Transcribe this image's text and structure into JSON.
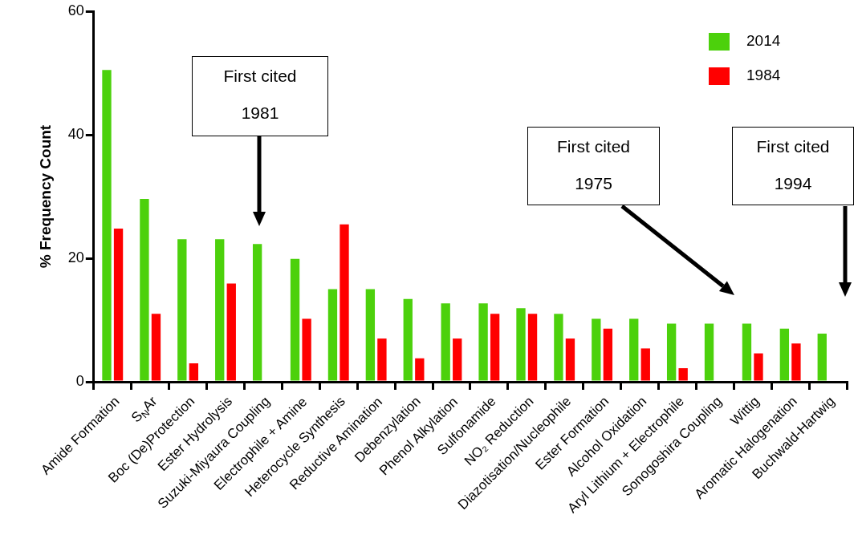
{
  "chart_data": {
    "type": "bar",
    "ylabel": "% Frequency Count",
    "categories": [
      "Amide Formation",
      "S$_{N}$Ar",
      "Boc (De)Protection",
      "Ester Hydrolysis",
      "Suzuki-Miyaura Coupling",
      "Electrophile + Amine",
      "Heterocycle Synthesis",
      "Reductive Amination",
      "Debenzylation",
      "Phenol Alkylation",
      "Sulfonamide",
      "NO₂ Reduction",
      "Diazotisation/Nucleophile",
      "Ester Formation",
      "Alcohol Oxidation",
      "Aryl Lithium + Electrophile",
      "Sonogoshira Coupling",
      "Wittig",
      "Aromatic Halogenation",
      "Buchwald-Hartwig"
    ],
    "series": [
      {
        "name": "2014",
        "color": "#4cd10c",
        "values": [
          50.5,
          29.6,
          23.1,
          23.1,
          22.3,
          19.9,
          15.0,
          15.0,
          13.4,
          12.7,
          12.7,
          11.9,
          11.0,
          10.2,
          10.2,
          9.4,
          9.4,
          9.4,
          8.6,
          7.8
        ]
      },
      {
        "name": "1984",
        "color": "#ff0000",
        "values": [
          24.8,
          11.0,
          3.0,
          15.9,
          0,
          10.2,
          25.5,
          7.0,
          3.8,
          7.0,
          11.0,
          11.0,
          7.0,
          8.6,
          5.4,
          2.2,
          0,
          4.6,
          6.2,
          0
        ]
      }
    ],
    "ylim": [
      0,
      60
    ],
    "yticks": [
      0,
      20,
      40,
      60
    ],
    "grid": false,
    "legend": "top right",
    "annotations": [
      "First cited\n1981",
      "First cited\n1975",
      "First cited\n1994"
    ]
  }
}
